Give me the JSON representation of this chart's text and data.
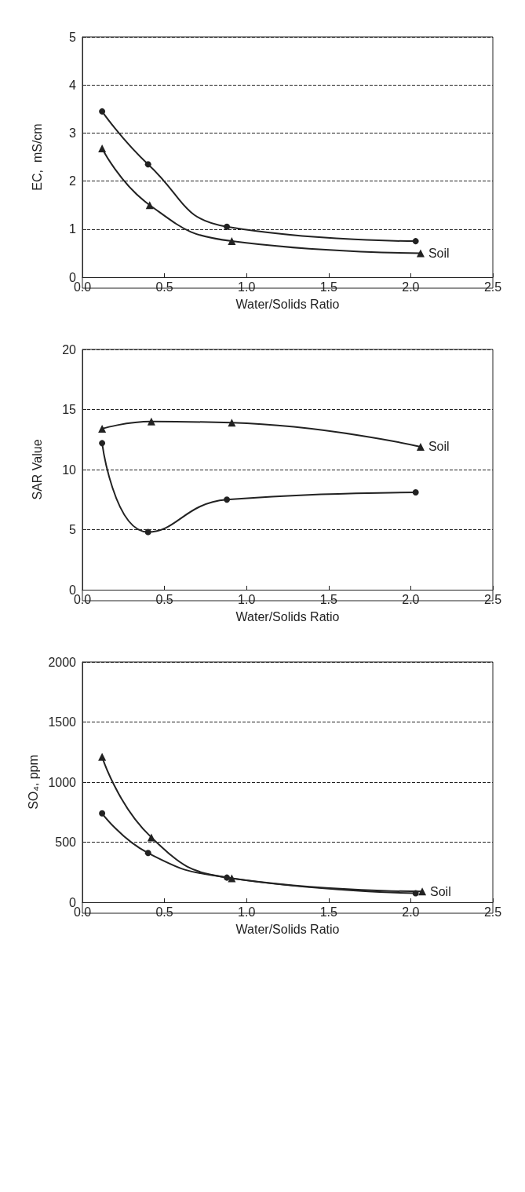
{
  "chart_data": [
    {
      "type": "line",
      "xlabel": "Water/Solids Ratio",
      "ylabel": "EC,  mS/cm",
      "xlim": [
        0,
        2.5
      ],
      "xticks": [
        {
          "value": 0,
          "label": "0.0"
        },
        {
          "value": 0.5,
          "label": "0.5"
        },
        {
          "value": 1,
          "label": "1.0"
        },
        {
          "value": 1.5,
          "label": "1.5"
        },
        {
          "value": 2,
          "label": "2.0"
        },
        {
          "value": 2.5,
          "label": "2.5"
        }
      ],
      "ylim": [
        0,
        5
      ],
      "yticks": [
        0,
        1,
        2,
        3,
        4,
        5
      ],
      "grid": "y",
      "legend": false,
      "line_style": "solid",
      "series": [
        {
          "color": "#222222",
          "marker": "circle",
          "x": [
            0.12,
            0.4,
            0.88,
            2.03
          ],
          "values": [
            3.45,
            2.35,
            1.05,
            0.75
          ]
        },
        {
          "name": "Soil",
          "color": "#222222",
          "marker": "triangle",
          "x": [
            0.12,
            0.41,
            0.91,
            2.06
          ],
          "values": [
            2.68,
            1.5,
            0.75,
            0.5
          ]
        }
      ]
    },
    {
      "type": "line",
      "xlabel": "Water/Solids Ratio",
      "ylabel": "SAR Value",
      "xlim": [
        0,
        2.5
      ],
      "xticks": [
        {
          "value": 0,
          "label": "0.0"
        },
        {
          "value": 0.5,
          "label": "0.5"
        },
        {
          "value": 1,
          "label": "1.0"
        },
        {
          "value": 1.5,
          "label": "1.5"
        },
        {
          "value": 2,
          "label": "2.0"
        },
        {
          "value": 2.5,
          "label": "2.5"
        }
      ],
      "ylim": [
        0,
        20
      ],
      "yticks": [
        0,
        5,
        10,
        15,
        20
      ],
      "grid": "y",
      "legend": false,
      "line_style": "solid",
      "series": [
        {
          "name": "Soil",
          "color": "#222222",
          "marker": "triangle",
          "x": [
            0.12,
            0.42,
            0.91,
            2.06
          ],
          "values": [
            13.4,
            14.0,
            13.9,
            11.9
          ]
        },
        {
          "color": "#222222",
          "marker": "circle",
          "x": [
            0.12,
            0.4,
            0.88,
            2.03
          ],
          "values": [
            12.2,
            4.8,
            7.5,
            8.1
          ]
        }
      ]
    },
    {
      "type": "line",
      "xlabel": "Water/Solids Ratio",
      "ylabel": "SO₄, ppm",
      "xlim": [
        0,
        2.5
      ],
      "xticks": [
        {
          "value": 0,
          "label": "0.0"
        },
        {
          "value": 0.5,
          "label": "0.5"
        },
        {
          "value": 1,
          "label": "1.0"
        },
        {
          "value": 1.5,
          "label": "1.5"
        },
        {
          "value": 2,
          "label": "2.0"
        },
        {
          "value": 2.5,
          "label": "2.5"
        }
      ],
      "ylim": [
        0,
        2000
      ],
      "yticks": [
        0,
        500,
        1000,
        1500,
        2000
      ],
      "grid": "y",
      "legend": false,
      "line_style": "solid",
      "series": [
        {
          "name": "Soil",
          "color": "#222222",
          "marker": "triangle",
          "x": [
            0.12,
            0.42,
            0.91,
            2.07
          ],
          "values": [
            1210,
            540,
            200,
            90
          ]
        },
        {
          "color": "#222222",
          "marker": "circle",
          "x": [
            0.12,
            0.4,
            0.88,
            2.03
          ],
          "values": [
            740,
            410,
            205,
            75
          ]
        }
      ]
    }
  ]
}
